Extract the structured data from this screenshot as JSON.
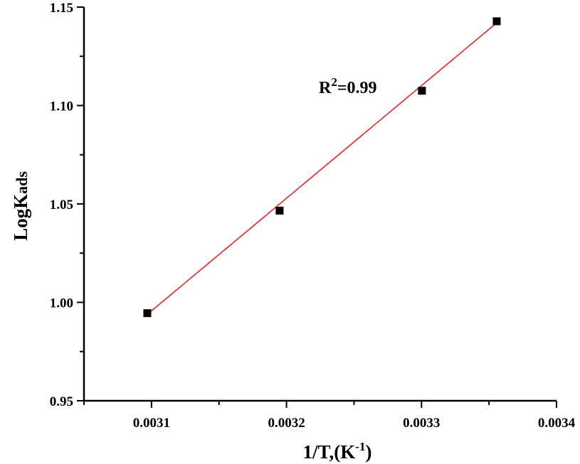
{
  "chart_data": {
    "type": "scatter",
    "xlabel": {
      "base": "1/T,(K",
      "sup": "-1",
      "tail": ")"
    },
    "ylabel": {
      "base": "LogK",
      "sub": "ads"
    },
    "xlim": [
      0.00305,
      0.0034
    ],
    "ylim": [
      0.95,
      1.15
    ],
    "x_ticks": [
      0.0031,
      0.0032,
      0.0033,
      0.0034
    ],
    "x_tick_labels": [
      "0.0031",
      "0.0032",
      "0.0033",
      "0.0034"
    ],
    "y_ticks": [
      0.95,
      1.0,
      1.05,
      1.1,
      1.15
    ],
    "y_tick_labels": [
      "0.95",
      "1.00",
      "1.05",
      "1.10",
      "1.15"
    ],
    "points": {
      "x": [
        0.0030969,
        0.0031949,
        0.0033003,
        0.0033557
      ],
      "y": [
        0.9945,
        1.0466,
        1.1075,
        1.1428
      ]
    },
    "fit_line": {
      "x": [
        0.0030969,
        0.0033557
      ],
      "y": [
        0.9939,
        1.142
      ],
      "color": "#e8251c"
    },
    "annotation": {
      "base": "R",
      "sup": "2",
      "tail": "=0.99"
    },
    "marker_color": "#000000",
    "grid": false,
    "legend": "none"
  }
}
